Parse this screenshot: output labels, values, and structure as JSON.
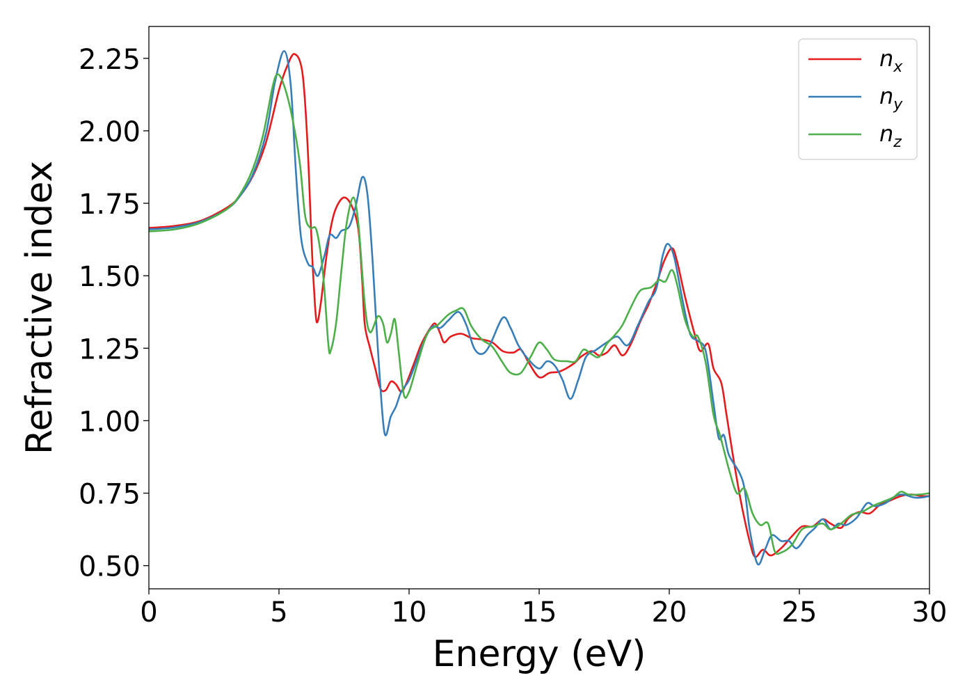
{
  "chart_data": {
    "type": "line",
    "title": "",
    "xlabel": "Energy (eV)",
    "ylabel": "Refractive index",
    "xlim": [
      0,
      30
    ],
    "ylim": [
      0.42,
      2.36
    ],
    "xticks": [
      "0",
      "5",
      "10",
      "15",
      "20",
      "25",
      "30"
    ],
    "yticks": [
      "0.50",
      "0.75",
      "1.00",
      "1.25",
      "1.50",
      "1.75",
      "2.00",
      "2.25"
    ],
    "grid": false,
    "legend": "top-right",
    "series": [
      {
        "name": "n_x",
        "legend_base": "n",
        "legend_sub": "x",
        "color": "#e41a1c",
        "points": [
          [
            0,
            1.665
          ],
          [
            1,
            1.672
          ],
          [
            2,
            1.69
          ],
          [
            3,
            1.735
          ],
          [
            3.5,
            1.775
          ],
          [
            4,
            1.845
          ],
          [
            4.5,
            1.96
          ],
          [
            5,
            2.14
          ],
          [
            5.3,
            2.22
          ],
          [
            5.6,
            2.265
          ],
          [
            5.9,
            2.2
          ],
          [
            6.1,
            1.95
          ],
          [
            6.25,
            1.62
          ],
          [
            6.35,
            1.45
          ],
          [
            6.45,
            1.34
          ],
          [
            6.6,
            1.4
          ],
          [
            6.8,
            1.55
          ],
          [
            7.0,
            1.67
          ],
          [
            7.2,
            1.735
          ],
          [
            7.5,
            1.77
          ],
          [
            7.8,
            1.74
          ],
          [
            8.05,
            1.66
          ],
          [
            8.2,
            1.48
          ],
          [
            8.3,
            1.33
          ],
          [
            8.5,
            1.25
          ],
          [
            8.7,
            1.18
          ],
          [
            8.9,
            1.11
          ],
          [
            9.1,
            1.105
          ],
          [
            9.3,
            1.135
          ],
          [
            9.5,
            1.125
          ],
          [
            9.7,
            1.1
          ],
          [
            9.9,
            1.13
          ],
          [
            10.2,
            1.2
          ],
          [
            10.5,
            1.27
          ],
          [
            10.9,
            1.33
          ],
          [
            11.05,
            1.33
          ],
          [
            11.2,
            1.3
          ],
          [
            11.35,
            1.27
          ],
          [
            11.6,
            1.29
          ],
          [
            12.0,
            1.3
          ],
          [
            12.4,
            1.285
          ],
          [
            12.8,
            1.28
          ],
          [
            13.2,
            1.27
          ],
          [
            13.6,
            1.24
          ],
          [
            14.0,
            1.235
          ],
          [
            14.3,
            1.245
          ],
          [
            14.6,
            1.2
          ],
          [
            15.0,
            1.15
          ],
          [
            15.4,
            1.165
          ],
          [
            15.8,
            1.17
          ],
          [
            16.3,
            1.195
          ],
          [
            16.6,
            1.22
          ],
          [
            17.0,
            1.24
          ],
          [
            17.3,
            1.225
          ],
          [
            17.6,
            1.235
          ],
          [
            17.9,
            1.26
          ],
          [
            18.2,
            1.225
          ],
          [
            18.5,
            1.26
          ],
          [
            18.9,
            1.345
          ],
          [
            19.2,
            1.4
          ],
          [
            19.5,
            1.47
          ],
          [
            19.8,
            1.55
          ],
          [
            20.1,
            1.595
          ],
          [
            20.3,
            1.55
          ],
          [
            20.6,
            1.43
          ],
          [
            21.0,
            1.29
          ],
          [
            21.2,
            1.24
          ],
          [
            21.5,
            1.265
          ],
          [
            21.7,
            1.18
          ],
          [
            22.0,
            1.13
          ],
          [
            22.2,
            1.02
          ],
          [
            22.5,
            0.85
          ],
          [
            22.8,
            0.7
          ],
          [
            23.1,
            0.58
          ],
          [
            23.3,
            0.53
          ],
          [
            23.6,
            0.555
          ],
          [
            23.9,
            0.535
          ],
          [
            24.3,
            0.56
          ],
          [
            24.7,
            0.6
          ],
          [
            25.1,
            0.635
          ],
          [
            25.5,
            0.635
          ],
          [
            25.9,
            0.66
          ],
          [
            26.2,
            0.645
          ],
          [
            26.6,
            0.63
          ],
          [
            26.9,
            0.665
          ],
          [
            27.3,
            0.685
          ],
          [
            27.7,
            0.68
          ],
          [
            28.1,
            0.71
          ],
          [
            28.5,
            0.725
          ],
          [
            28.9,
            0.74
          ],
          [
            29.3,
            0.745
          ],
          [
            29.7,
            0.74
          ],
          [
            30,
            0.74
          ]
        ]
      },
      {
        "name": "n_y",
        "legend_base": "n",
        "legend_sub": "y",
        "color": "#377eb8",
        "points": [
          [
            0,
            1.66
          ],
          [
            1,
            1.667
          ],
          [
            2,
            1.687
          ],
          [
            3,
            1.73
          ],
          [
            3.5,
            1.775
          ],
          [
            4,
            1.85
          ],
          [
            4.5,
            1.99
          ],
          [
            4.85,
            2.17
          ],
          [
            5.2,
            2.275
          ],
          [
            5.45,
            2.16
          ],
          [
            5.65,
            1.86
          ],
          [
            5.85,
            1.63
          ],
          [
            6.1,
            1.545
          ],
          [
            6.3,
            1.53
          ],
          [
            6.5,
            1.5
          ],
          [
            6.75,
            1.57
          ],
          [
            6.95,
            1.64
          ],
          [
            7.2,
            1.63
          ],
          [
            7.4,
            1.655
          ],
          [
            7.7,
            1.67
          ],
          [
            7.95,
            1.74
          ],
          [
            8.2,
            1.84
          ],
          [
            8.4,
            1.78
          ],
          [
            8.6,
            1.55
          ],
          [
            8.8,
            1.25
          ],
          [
            9.05,
            0.96
          ],
          [
            9.3,
            1.015
          ],
          [
            9.5,
            1.05
          ],
          [
            9.7,
            1.1
          ],
          [
            10.0,
            1.14
          ],
          [
            10.3,
            1.21
          ],
          [
            10.6,
            1.28
          ],
          [
            10.9,
            1.325
          ],
          [
            11.2,
            1.32
          ],
          [
            11.5,
            1.345
          ],
          [
            11.9,
            1.375
          ],
          [
            12.2,
            1.33
          ],
          [
            12.5,
            1.25
          ],
          [
            12.8,
            1.23
          ],
          [
            13.1,
            1.26
          ],
          [
            13.6,
            1.355
          ],
          [
            13.9,
            1.32
          ],
          [
            14.2,
            1.26
          ],
          [
            14.6,
            1.21
          ],
          [
            15.0,
            1.18
          ],
          [
            15.3,
            1.205
          ],
          [
            15.6,
            1.19
          ],
          [
            15.9,
            1.14
          ],
          [
            16.2,
            1.075
          ],
          [
            16.5,
            1.14
          ],
          [
            16.8,
            1.22
          ],
          [
            17.2,
            1.245
          ],
          [
            17.6,
            1.27
          ],
          [
            18.0,
            1.29
          ],
          [
            18.4,
            1.26
          ],
          [
            18.8,
            1.33
          ],
          [
            19.2,
            1.41
          ],
          [
            19.5,
            1.455
          ],
          [
            19.75,
            1.57
          ],
          [
            19.95,
            1.61
          ],
          [
            20.2,
            1.56
          ],
          [
            20.5,
            1.42
          ],
          [
            20.8,
            1.3
          ],
          [
            21.1,
            1.275
          ],
          [
            21.4,
            1.24
          ],
          [
            21.7,
            1.06
          ],
          [
            21.9,
            0.94
          ],
          [
            22.1,
            0.95
          ],
          [
            22.3,
            0.88
          ],
          [
            22.7,
            0.82
          ],
          [
            22.9,
            0.76
          ],
          [
            23.1,
            0.62
          ],
          [
            23.4,
            0.505
          ],
          [
            23.7,
            0.56
          ],
          [
            23.95,
            0.605
          ],
          [
            24.3,
            0.585
          ],
          [
            24.6,
            0.585
          ],
          [
            24.9,
            0.56
          ],
          [
            25.3,
            0.605
          ],
          [
            25.6,
            0.63
          ],
          [
            25.9,
            0.66
          ],
          [
            26.2,
            0.625
          ],
          [
            26.5,
            0.645
          ],
          [
            26.8,
            0.64
          ],
          [
            27.2,
            0.665
          ],
          [
            27.6,
            0.715
          ],
          [
            27.9,
            0.705
          ],
          [
            28.3,
            0.715
          ],
          [
            28.7,
            0.74
          ],
          [
            29.0,
            0.745
          ],
          [
            29.4,
            0.735
          ],
          [
            29.7,
            0.735
          ],
          [
            30,
            0.74
          ]
        ]
      },
      {
        "name": "n_z",
        "legend_base": "n",
        "legend_sub": "z",
        "color": "#4daf4a",
        "points": [
          [
            0,
            1.653
          ],
          [
            1,
            1.66
          ],
          [
            2,
            1.683
          ],
          [
            3,
            1.73
          ],
          [
            3.5,
            1.78
          ],
          [
            4,
            1.87
          ],
          [
            4.4,
            1.99
          ],
          [
            4.75,
            2.15
          ],
          [
            4.95,
            2.195
          ],
          [
            5.2,
            2.155
          ],
          [
            5.5,
            2.05
          ],
          [
            5.8,
            1.89
          ],
          [
            6.0,
            1.71
          ],
          [
            6.2,
            1.665
          ],
          [
            6.45,
            1.655
          ],
          [
            6.7,
            1.5
          ],
          [
            6.9,
            1.26
          ],
          [
            7.0,
            1.245
          ],
          [
            7.2,
            1.34
          ],
          [
            7.4,
            1.52
          ],
          [
            7.6,
            1.68
          ],
          [
            7.85,
            1.77
          ],
          [
            8.05,
            1.68
          ],
          [
            8.3,
            1.4
          ],
          [
            8.5,
            1.305
          ],
          [
            8.8,
            1.36
          ],
          [
            9.0,
            1.335
          ],
          [
            9.15,
            1.27
          ],
          [
            9.3,
            1.3
          ],
          [
            9.45,
            1.35
          ],
          [
            9.6,
            1.24
          ],
          [
            9.8,
            1.09
          ],
          [
            10.0,
            1.1
          ],
          [
            10.3,
            1.19
          ],
          [
            10.7,
            1.3
          ],
          [
            11.1,
            1.33
          ],
          [
            11.5,
            1.365
          ],
          [
            11.8,
            1.38
          ],
          [
            12.1,
            1.385
          ],
          [
            12.4,
            1.325
          ],
          [
            12.8,
            1.28
          ],
          [
            13.2,
            1.255
          ],
          [
            13.6,
            1.2
          ],
          [
            13.9,
            1.165
          ],
          [
            14.3,
            1.165
          ],
          [
            14.7,
            1.225
          ],
          [
            15.0,
            1.27
          ],
          [
            15.3,
            1.245
          ],
          [
            15.6,
            1.21
          ],
          [
            16.1,
            1.205
          ],
          [
            16.4,
            1.205
          ],
          [
            16.7,
            1.245
          ],
          [
            17.0,
            1.23
          ],
          [
            17.3,
            1.22
          ],
          [
            17.6,
            1.265
          ],
          [
            17.9,
            1.295
          ],
          [
            18.2,
            1.33
          ],
          [
            18.6,
            1.405
          ],
          [
            18.9,
            1.45
          ],
          [
            19.3,
            1.46
          ],
          [
            19.6,
            1.485
          ],
          [
            19.85,
            1.48
          ],
          [
            20.1,
            1.52
          ],
          [
            20.3,
            1.47
          ],
          [
            20.6,
            1.35
          ],
          [
            20.9,
            1.29
          ],
          [
            21.1,
            1.29
          ],
          [
            21.4,
            1.2
          ],
          [
            21.7,
            1.02
          ],
          [
            21.95,
            0.95
          ],
          [
            22.3,
            0.83
          ],
          [
            22.6,
            0.75
          ],
          [
            22.9,
            0.765
          ],
          [
            23.2,
            0.68
          ],
          [
            23.5,
            0.64
          ],
          [
            23.8,
            0.645
          ],
          [
            24.05,
            0.55
          ],
          [
            24.3,
            0.545
          ],
          [
            24.7,
            0.57
          ],
          [
            25.1,
            0.625
          ],
          [
            25.5,
            0.635
          ],
          [
            25.9,
            0.645
          ],
          [
            26.2,
            0.625
          ],
          [
            26.6,
            0.645
          ],
          [
            27.0,
            0.675
          ],
          [
            27.4,
            0.685
          ],
          [
            27.8,
            0.705
          ],
          [
            28.2,
            0.72
          ],
          [
            28.6,
            0.735
          ],
          [
            28.9,
            0.755
          ],
          [
            29.2,
            0.745
          ],
          [
            29.6,
            0.745
          ],
          [
            30,
            0.75
          ]
        ]
      }
    ]
  }
}
